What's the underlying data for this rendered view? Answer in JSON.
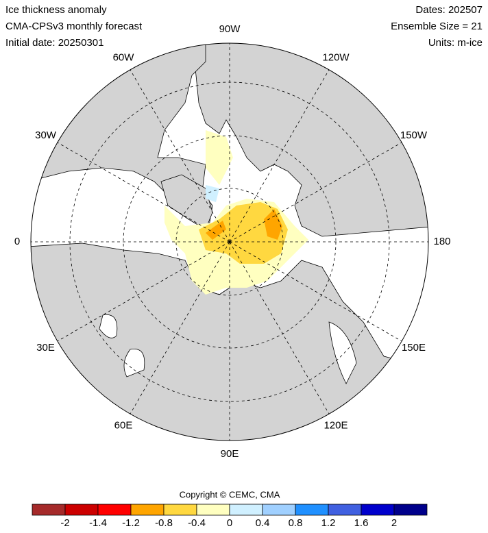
{
  "header": {
    "left": [
      "Ice thickness anomaly",
      "CMA-CPSv3 monthly forecast",
      "Initial date: 20250301"
    ],
    "right": [
      "Dates: 202507",
      "Ensemble Size = 21",
      "Units: m-ice"
    ]
  },
  "map": {
    "lon_labels": [
      "90W",
      "120W",
      "150W",
      "180",
      "150E",
      "120E",
      "90E",
      "60E",
      "30E",
      "0",
      "30W",
      "60W"
    ]
  },
  "copyright": "Copyright © CEMC, CMA",
  "colorbar": {
    "labels": [
      "-2",
      "-1.4",
      "-1.2",
      "-0.8",
      "-0.4",
      "0",
      "0.4",
      "0.8",
      "1.2",
      "1.6",
      "2"
    ],
    "colors": [
      "#a52a2a",
      "#cc0000",
      "#ff0000",
      "#ffa500",
      "#ffd840",
      "#ffffc0",
      "#d0f0ff",
      "#a0d0ff",
      "#2090ff",
      "#4060e0",
      "#0000cc",
      "#00008b"
    ]
  }
}
